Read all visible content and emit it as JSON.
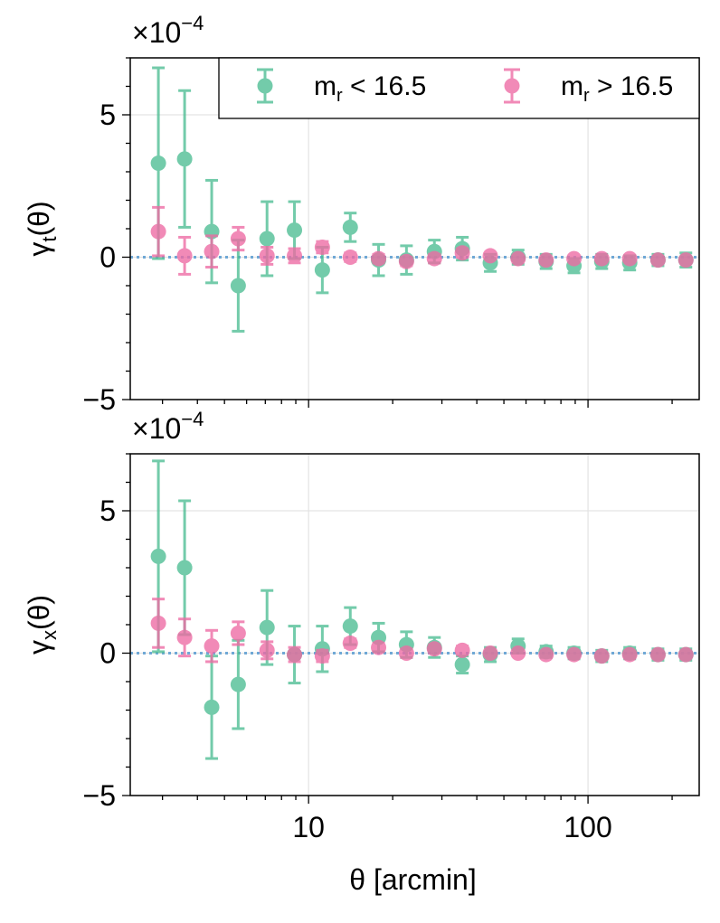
{
  "chart_data": [
    {
      "type": "scatter",
      "panel": "top",
      "ylabel_base": "γ",
      "ylabel_sub": "t",
      "ylabel_tail": "(θ)",
      "scale_base": "×10",
      "scale_exp": "−4",
      "xscale": "log",
      "xlim": [
        2.3,
        250
      ],
      "ylim": [
        -5,
        7
      ],
      "yticks": [
        -5,
        0,
        5
      ],
      "ytick_labels": [
        "−5",
        "0",
        "5"
      ],
      "reference_line": 0,
      "grid": true,
      "legend": {
        "placement": "top-right",
        "entries": [
          {
            "base": "m",
            "sub": "r",
            "rest": " < 16.5"
          },
          {
            "base": "m",
            "sub": "r",
            "rest": " > 16.5"
          }
        ]
      },
      "series": [
        {
          "name": "m_r < 16.5",
          "color": "#4dbd93",
          "x": [
            2.9,
            3.6,
            4.5,
            5.6,
            7.1,
            8.9,
            11.2,
            14.1,
            17.8,
            22.4,
            28.2,
            35.5,
            44.7,
            56.2,
            70.8,
            89.1,
            112,
            141,
            178,
            224
          ],
          "y": [
            3.3,
            3.45,
            0.9,
            -1.0,
            0.65,
            0.95,
            -0.45,
            1.05,
            -0.1,
            -0.1,
            0.2,
            0.3,
            -0.2,
            0.0,
            -0.15,
            -0.3,
            -0.15,
            -0.2,
            -0.1,
            -0.1
          ],
          "err": [
            3.35,
            2.4,
            1.8,
            1.6,
            1.3,
            1.0,
            0.8,
            0.5,
            0.55,
            0.5,
            0.4,
            0.4,
            0.3,
            0.25,
            0.25,
            0.25,
            0.25,
            0.25,
            0.2,
            0.25
          ]
        },
        {
          "name": "m_r > 16.5",
          "color": "#ee6aa3",
          "x": [
            2.9,
            3.6,
            4.5,
            5.6,
            7.1,
            8.9,
            11.2,
            14.1,
            17.8,
            22.4,
            28.2,
            35.5,
            44.7,
            56.2,
            70.8,
            89.1,
            112,
            141,
            178,
            224
          ],
          "y": [
            0.9,
            0.05,
            0.2,
            0.65,
            0.05,
            0.05,
            0.35,
            0.0,
            -0.05,
            -0.15,
            -0.05,
            0.15,
            0.05,
            -0.05,
            -0.1,
            -0.05,
            -0.05,
            -0.05,
            -0.1,
            -0.1
          ],
          "err": [
            0.85,
            0.65,
            0.55,
            0.4,
            0.3,
            0.25,
            0.2,
            0.15,
            0.15,
            0.15,
            0.15,
            0.15,
            0.1,
            0.1,
            0.1,
            0.1,
            0.1,
            0.1,
            0.1,
            0.1
          ]
        }
      ]
    },
    {
      "type": "scatter",
      "panel": "bottom",
      "ylabel_base": "γ",
      "ylabel_sub": "x",
      "ylabel_tail": "(θ)",
      "scale_base": "×10",
      "scale_exp": "−4",
      "xscale": "log",
      "xlim": [
        2.3,
        250
      ],
      "ylim": [
        -5,
        7
      ],
      "yticks": [
        -5,
        0,
        5
      ],
      "ytick_labels": [
        "−5",
        "0",
        "5"
      ],
      "xticks": [
        10,
        100
      ],
      "xtick_labels": [
        "10",
        "100"
      ],
      "xlabel": "θ [arcmin]",
      "reference_line": 0,
      "grid": true,
      "series": [
        {
          "name": "m_r < 16.5",
          "color": "#4dbd93",
          "x": [
            2.9,
            3.6,
            4.5,
            5.6,
            7.1,
            8.9,
            11.2,
            14.1,
            17.8,
            22.4,
            28.2,
            35.5,
            44.7,
            56.2,
            70.8,
            89.1,
            112,
            141,
            178,
            224
          ],
          "y": [
            3.4,
            3.0,
            -1.9,
            -1.1,
            0.9,
            -0.05,
            0.15,
            0.95,
            0.55,
            0.3,
            0.2,
            -0.4,
            -0.05,
            0.25,
            0.05,
            0.0,
            -0.1,
            0.0,
            -0.05,
            -0.05
          ],
          "err": [
            3.35,
            2.35,
            1.8,
            1.55,
            1.3,
            1.0,
            0.8,
            0.65,
            0.5,
            0.45,
            0.35,
            0.3,
            0.25,
            0.25,
            0.2,
            0.2,
            0.2,
            0.2,
            0.2,
            0.2
          ]
        },
        {
          "name": "m_r > 16.5",
          "color": "#ee6aa3",
          "x": [
            2.9,
            3.6,
            4.5,
            5.6,
            7.1,
            8.9,
            11.2,
            14.1,
            17.8,
            22.4,
            28.2,
            35.5,
            44.7,
            56.2,
            70.8,
            89.1,
            112,
            141,
            178,
            224
          ],
          "y": [
            1.05,
            0.55,
            0.25,
            0.7,
            0.1,
            -0.05,
            -0.1,
            0.35,
            0.2,
            0.0,
            0.15,
            0.1,
            0.0,
            0.0,
            -0.05,
            -0.05,
            -0.1,
            -0.05,
            -0.05,
            -0.05
          ],
          "err": [
            0.85,
            0.65,
            0.55,
            0.4,
            0.3,
            0.25,
            0.2,
            0.15,
            0.15,
            0.15,
            0.15,
            0.15,
            0.1,
            0.1,
            0.1,
            0.1,
            0.1,
            0.1,
            0.1,
            0.1
          ]
        }
      ]
    }
  ],
  "colors": {
    "reference_line": "#6fa8d6",
    "grid": "#e3e3e3",
    "axis": "#000000"
  }
}
